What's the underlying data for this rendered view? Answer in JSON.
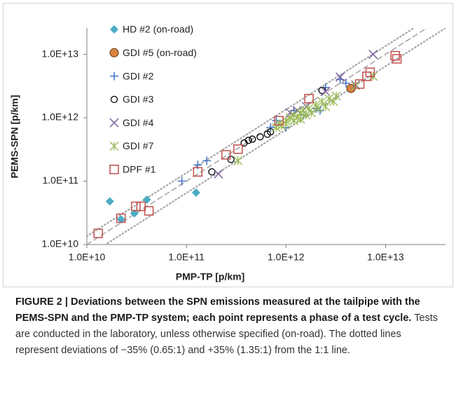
{
  "chart_data": {
    "type": "scatter",
    "x_label": "PMP-TP [p/km]",
    "y_label": "PEMS-SPN [p/km]",
    "xscale": "log",
    "yscale": "log",
    "xlim": [
      10000000000.0,
      40000000000000.0
    ],
    "ylim": [
      10000000000.0,
      26000000000000.0
    ],
    "xticks": [
      {
        "value": 10000000000.0,
        "label": "1.0E+10"
      },
      {
        "value": 100000000000.0,
        "label": "1.0E+11"
      },
      {
        "value": 1000000000000.0,
        "label": "1.0E+12"
      },
      {
        "value": 10000000000000.0,
        "label": "1.0E+13"
      }
    ],
    "yticks": [
      {
        "value": 10000000000.0,
        "label": "1.0E+10"
      },
      {
        "value": 100000000000.0,
        "label": "1.0E+11"
      },
      {
        "value": 1000000000000.0,
        "label": "1.0E+12"
      },
      {
        "value": 10000000000000.0,
        "label": "1.0E+13"
      }
    ],
    "grid": false,
    "legend": "upper left",
    "reference_lines": [
      {
        "ratio": 0.65,
        "style": "dotted"
      },
      {
        "ratio": 1,
        "style": "dashed"
      },
      {
        "ratio": 1.35,
        "style": "dotted"
      }
    ],
    "series": [
      {
        "name": "HD #2 (on-road)",
        "color": "#4bacc6",
        "marker": "diamond",
        "x": [
          17000000000.0,
          22000000000.0,
          30000000000.0,
          40000000000.0,
          125000000000.0
        ],
        "values": [
          48000000000.0,
          25000000000.0,
          31000000000.0,
          51000000000.0,
          66000000000.0
        ]
      },
      {
        "name": "GDI #5 (on-road)",
        "color": "#d9823f",
        "marker": "circle-filled",
        "x": [
          4500000000000.0
        ],
        "values": [
          2900000000000.0
        ]
      },
      {
        "name": "GDI #2",
        "color": "#4472c4",
        "marker": "plus",
        "x": [
          90000000000.0,
          130000000000.0,
          160000000000.0,
          700000000000.0,
          800000000000.0,
          1000000000000.0,
          1200000000000.0,
          1500000000000.0,
          2000000000000.0,
          2200000000000.0,
          2500000000000.0,
          3500000000000.0,
          4000000000000.0
        ],
        "values": [
          100000000000.0,
          180000000000.0,
          210000000000.0,
          700000000000.0,
          900000000000.0,
          700000000000.0,
          1300000000000.0,
          1100000000000.0,
          1400000000000.0,
          1300000000000.0,
          3000000000000.0,
          4000000000000.0,
          3500000000000.0
        ]
      },
      {
        "name": "GDI #3",
        "color": "#000000",
        "marker": "circle",
        "x": [
          180000000000.0,
          280000000000.0,
          380000000000.0,
          420000000000.0,
          460000000000.0,
          550000000000.0,
          650000000000.0,
          700000000000.0,
          2300000000000.0
        ],
        "values": [
          140000000000.0,
          220000000000.0,
          400000000000.0,
          440000000000.0,
          460000000000.0,
          500000000000.0,
          550000000000.0,
          600000000000.0,
          2700000000000.0
        ]
      },
      {
        "name": "GDI #4",
        "color": "#8064a2",
        "marker": "x",
        "x": [
          210000000000.0,
          1100000000000.0,
          1300000000000.0,
          1600000000000.0,
          2500000000000.0,
          3500000000000.0,
          5000000000000.0,
          7500000000000.0
        ],
        "values": [
          130000000000.0,
          1200000000000.0,
          1300000000000.0,
          1500000000000.0,
          2600000000000.0,
          4400000000000.0,
          3300000000000.0,
          10000000000000.0
        ]
      },
      {
        "name": "GDI #7",
        "color": "#9bbb59",
        "marker": "asterisk",
        "x": [
          330000000000.0,
          800000000000.0,
          850000000000.0,
          900000000000.0,
          1000000000000.0,
          1000000000000.0,
          1100000000000.0,
          1200000000000.0,
          1200000000000.0,
          1300000000000.0,
          1400000000000.0,
          1400000000000.0,
          1500000000000.0,
          1600000000000.0,
          1700000000000.0,
          1800000000000.0,
          2000000000000.0,
          2100000000000.0,
          2300000000000.0,
          2500000000000.0,
          2700000000000.0,
          3000000000000.0,
          3200000000000.0,
          5000000000000.0,
          7500000000000.0
        ],
        "values": [
          210000000000.0,
          700000000000.0,
          800000000000.0,
          750000000000.0,
          900000000000.0,
          800000000000.0,
          1000000000000.0,
          900000000000.0,
          1100000000000.0,
          1000000000000.0,
          1200000000000.0,
          950000000000.0,
          1300000000000.0,
          1100000000000.0,
          1400000000000.0,
          1200000000000.0,
          1600000000000.0,
          1400000000000.0,
          1800000000000.0,
          1500000000000.0,
          2000000000000.0,
          1800000000000.0,
          2200000000000.0,
          3200000000000.0,
          4500000000000.0
        ]
      },
      {
        "name": "DPF #1",
        "color": "#c0504d",
        "marker": "square",
        "x": [
          13000000000.0,
          22000000000.0,
          31000000000.0,
          35000000000.0,
          42000000000.0,
          130000000000.0,
          250000000000.0,
          330000000000.0,
          850000000000.0,
          1700000000000.0,
          5500000000000.0,
          6500000000000.0,
          7000000000000.0,
          12500000000000.0,
          13000000000000.0
        ],
        "values": [
          15000000000.0,
          26000000000.0,
          40000000000.0,
          40000000000.0,
          34000000000.0,
          140000000000.0,
          260000000000.0,
          320000000000.0,
          900000000000.0,
          2000000000000.0,
          3400000000000.0,
          4500000000000.0,
          5200000000000.0,
          9500000000000.0,
          8500000000000.0
        ]
      }
    ]
  },
  "caption": {
    "bold": "FIGURE 2 | Deviations between the SPN emissions measured at the tailpipe with the PEMS-SPN and the PMP-TP system; each point represents a phase of a test cycle.",
    "text": " Tests are conducted in the laboratory, unless otherwise specified (on-road). The dotted lines represent deviations of −35% (0.65:1) and +35% (1.35:1) from the 1:1 line."
  }
}
